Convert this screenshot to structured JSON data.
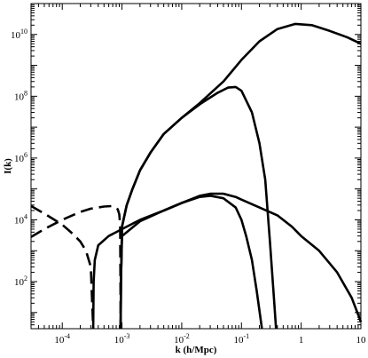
{
  "chart_data": {
    "type": "line",
    "title": "",
    "xlabel": "k (h/Mpc)",
    "ylabel": "I(k)",
    "x_scale": "log",
    "y_scale": "log",
    "xlim": [
      3e-05,
      10
    ],
    "ylim": [
      3,
      100000000000
    ],
    "x_ticks": [
      {
        "base": "10",
        "exp": "-4",
        "value": 0.0001
      },
      {
        "base": "10",
        "exp": "-3",
        "value": 0.001
      },
      {
        "base": "10",
        "exp": "-2",
        "value": 0.01
      },
      {
        "base": "10",
        "exp": "-1",
        "value": 0.1
      },
      {
        "base": "1",
        "exp": "",
        "value": 1
      },
      {
        "base": "10",
        "exp": "",
        "value": 10
      }
    ],
    "y_ticks": [
      {
        "base": "10",
        "exp": "2",
        "value": 100
      },
      {
        "base": "10",
        "exp": "4",
        "value": 10000
      },
      {
        "base": "10",
        "exp": "6",
        "value": 1000000
      },
      {
        "base": "10",
        "exp": "8",
        "value": 100000000
      },
      {
        "base": "10",
        "exp": "10",
        "value": 10000000000
      }
    ],
    "grid": false,
    "legend": "none",
    "series": [
      {
        "style": "solid",
        "points": [
          [
            0.00095,
            3
          ],
          [
            0.00096,
            100
          ],
          [
            0.001,
            6000
          ],
          [
            0.0012,
            30000
          ],
          [
            0.0015,
            100000
          ],
          [
            0.002,
            400000
          ],
          [
            0.003,
            1500000
          ],
          [
            0.005,
            6000000
          ],
          [
            0.01,
            20000000
          ],
          [
            0.02,
            60000000
          ],
          [
            0.05,
            300000000
          ],
          [
            0.1,
            1500000000
          ],
          [
            0.2,
            6000000000
          ],
          [
            0.4,
            15000000000
          ],
          [
            0.8,
            22000000000
          ],
          [
            1.5,
            20000000000
          ],
          [
            3,
            13000000000
          ],
          [
            6,
            8000000000
          ],
          [
            10,
            5000000000
          ]
        ]
      },
      {
        "style": "solid",
        "points": [
          [
            0.00095,
            3
          ],
          [
            0.00096,
            100
          ],
          [
            0.001,
            6000
          ],
          [
            0.0012,
            30000
          ],
          [
            0.0015,
            100000
          ],
          [
            0.002,
            400000
          ],
          [
            0.003,
            1500000
          ],
          [
            0.005,
            6000000
          ],
          [
            0.01,
            20000000
          ],
          [
            0.02,
            55000000
          ],
          [
            0.04,
            130000000
          ],
          [
            0.06,
            190000000
          ],
          [
            0.08,
            200000000
          ],
          [
            0.1,
            150000000
          ],
          [
            0.15,
            30000000
          ],
          [
            0.2,
            3000000
          ],
          [
            0.25,
            200000
          ],
          [
            0.3,
            2000
          ],
          [
            0.35,
            30
          ],
          [
            0.38,
            3
          ]
        ]
      },
      {
        "style": "solid",
        "points": [
          [
            0.00033,
            3
          ],
          [
            0.000335,
            100
          ],
          [
            0.00035,
            500
          ],
          [
            0.0004,
            1500
          ],
          [
            0.0006,
            3000
          ],
          [
            0.001,
            5000
          ],
          [
            0.002,
            10000
          ],
          [
            0.005,
            20000
          ],
          [
            0.01,
            35000
          ],
          [
            0.02,
            60000
          ],
          [
            0.03,
            70000
          ],
          [
            0.05,
            70000
          ],
          [
            0.08,
            55000
          ],
          [
            0.1,
            45000
          ],
          [
            0.2,
            25000
          ],
          [
            0.4,
            14000
          ],
          [
            0.7,
            6000
          ],
          [
            1,
            3000
          ],
          [
            2,
            1000
          ],
          [
            4,
            200
          ],
          [
            7,
            30
          ],
          [
            10,
            5
          ]
        ]
      },
      {
        "style": "solid",
        "points": [
          [
            0.00095,
            3
          ],
          [
            0.00096,
            100
          ],
          [
            0.001,
            3000
          ],
          [
            0.002,
            9000
          ],
          [
            0.005,
            20000
          ],
          [
            0.01,
            35000
          ],
          [
            0.02,
            55000
          ],
          [
            0.03,
            60000
          ],
          [
            0.05,
            50000
          ],
          [
            0.08,
            25000
          ],
          [
            0.1,
            10000
          ],
          [
            0.12,
            3000
          ],
          [
            0.15,
            500
          ],
          [
            0.18,
            50
          ],
          [
            0.22,
            3
          ]
        ]
      },
      {
        "style": "dashed",
        "points": [
          [
            3e-05,
            2800
          ],
          [
            5e-05,
            5000
          ],
          [
            0.0001,
            10000
          ],
          [
            0.0002,
            18000
          ],
          [
            0.0003,
            23000
          ],
          [
            0.0005,
            27000
          ],
          [
            0.0007,
            28000
          ],
          [
            0.00085,
            22000
          ],
          [
            0.0009,
            15000
          ],
          [
            0.00093,
            7000
          ],
          [
            0.00095,
            3
          ]
        ]
      },
      {
        "style": "dashed",
        "points": [
          [
            3e-05,
            28000
          ],
          [
            5e-05,
            16000
          ],
          [
            0.0001,
            7000
          ],
          [
            0.00015,
            3500
          ],
          [
            0.0002,
            2000
          ],
          [
            0.00025,
            1000
          ],
          [
            0.0003,
            300
          ],
          [
            0.00033,
            3
          ]
        ]
      }
    ]
  }
}
